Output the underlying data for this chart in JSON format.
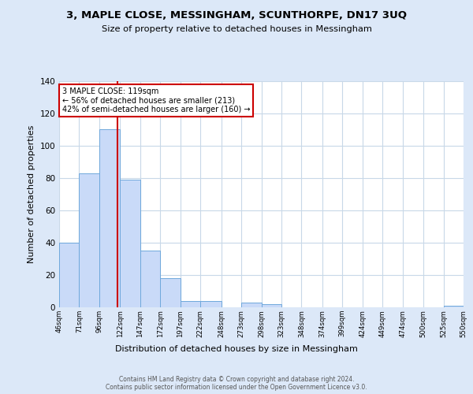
{
  "title": "3, MAPLE CLOSE, MESSINGHAM, SCUNTHORPE, DN17 3UQ",
  "subtitle": "Size of property relative to detached houses in Messingham",
  "xlabel": "Distribution of detached houses by size in Messingham",
  "ylabel": "Number of detached properties",
  "bin_edges": [
    46,
    71,
    96,
    122,
    147,
    172,
    197,
    222,
    248,
    273,
    298,
    323,
    348,
    374,
    399,
    424,
    449,
    474,
    500,
    525,
    550
  ],
  "bin_labels": [
    "46sqm",
    "71sqm",
    "96sqm",
    "122sqm",
    "147sqm",
    "172sqm",
    "197sqm",
    "222sqm",
    "248sqm",
    "273sqm",
    "298sqm",
    "323sqm",
    "348sqm",
    "374sqm",
    "399sqm",
    "424sqm",
    "449sqm",
    "474sqm",
    "500sqm",
    "525sqm",
    "550sqm"
  ],
  "counts": [
    40,
    83,
    110,
    79,
    35,
    18,
    4,
    4,
    0,
    3,
    2,
    0,
    0,
    0,
    0,
    0,
    0,
    0,
    0,
    1
  ],
  "bar_color": "#c9daf8",
  "bar_edge_color": "#6fa8dc",
  "property_size": 119,
  "vline_color": "#cc0000",
  "annotation_line1": "3 MAPLE CLOSE: 119sqm",
  "annotation_line2": "← 56% of detached houses are smaller (213)",
  "annotation_line3": "42% of semi-detached houses are larger (160) →",
  "annotation_box_color": "white",
  "annotation_box_edge_color": "#cc0000",
  "ylim": [
    0,
    140
  ],
  "yticks": [
    0,
    20,
    40,
    60,
    80,
    100,
    120,
    140
  ],
  "background_color": "#dce8f8",
  "plot_background": "white",
  "grid_color": "#c8d8e8",
  "footer1": "Contains HM Land Registry data © Crown copyright and database right 2024.",
  "footer2": "Contains public sector information licensed under the Open Government Licence v3.0."
}
